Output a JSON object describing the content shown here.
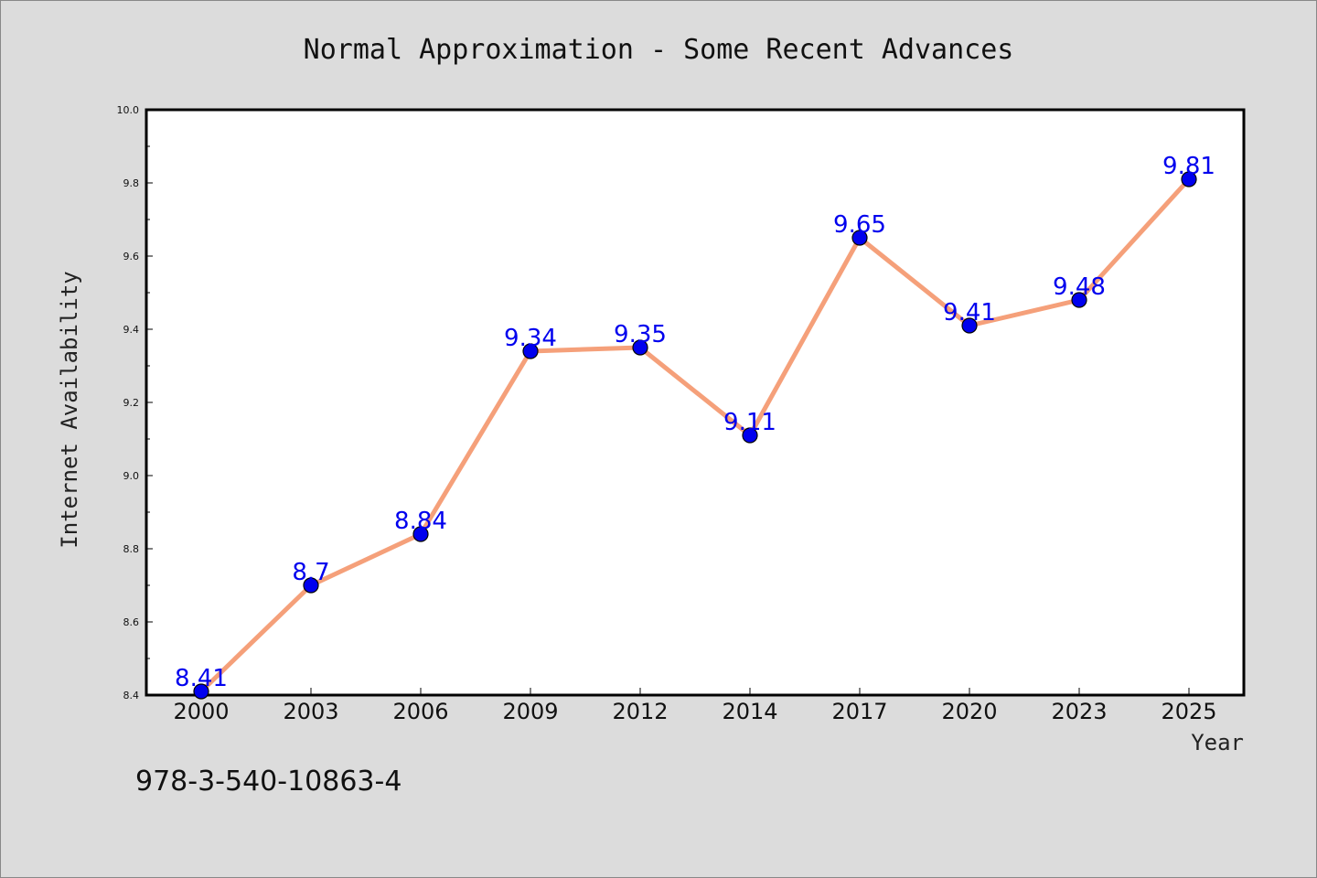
{
  "chart_data": {
    "type": "line",
    "title": "Normal Approximation - Some Recent Advances",
    "xlabel": "Year",
    "ylabel": "Internet Availability",
    "categories": [
      "2000",
      "2003",
      "2006",
      "2009",
      "2012",
      "2014",
      "2017",
      "2020",
      "2023",
      "2025"
    ],
    "values": [
      8.41,
      8.7,
      8.84,
      9.34,
      9.35,
      9.11,
      9.65,
      9.41,
      9.48,
      9.81
    ],
    "data_labels": [
      "8.41",
      "8.7",
      "8.84",
      "9.34",
      "9.35",
      "9.11",
      "9.65",
      "9.41",
      "9.48",
      "9.81"
    ],
    "ylim": [
      8.4,
      10.0
    ],
    "yticks": [
      "8.4",
      "8.6",
      "8.8",
      "9.0",
      "9.2",
      "9.4",
      "9.6",
      "9.8",
      "10.0"
    ],
    "grid": false,
    "line_color": "#f5a07a",
    "marker_color": "#0000ee",
    "label_color": "#0000ee"
  },
  "footer": {
    "isbn": "978-3-540-10863-4"
  }
}
